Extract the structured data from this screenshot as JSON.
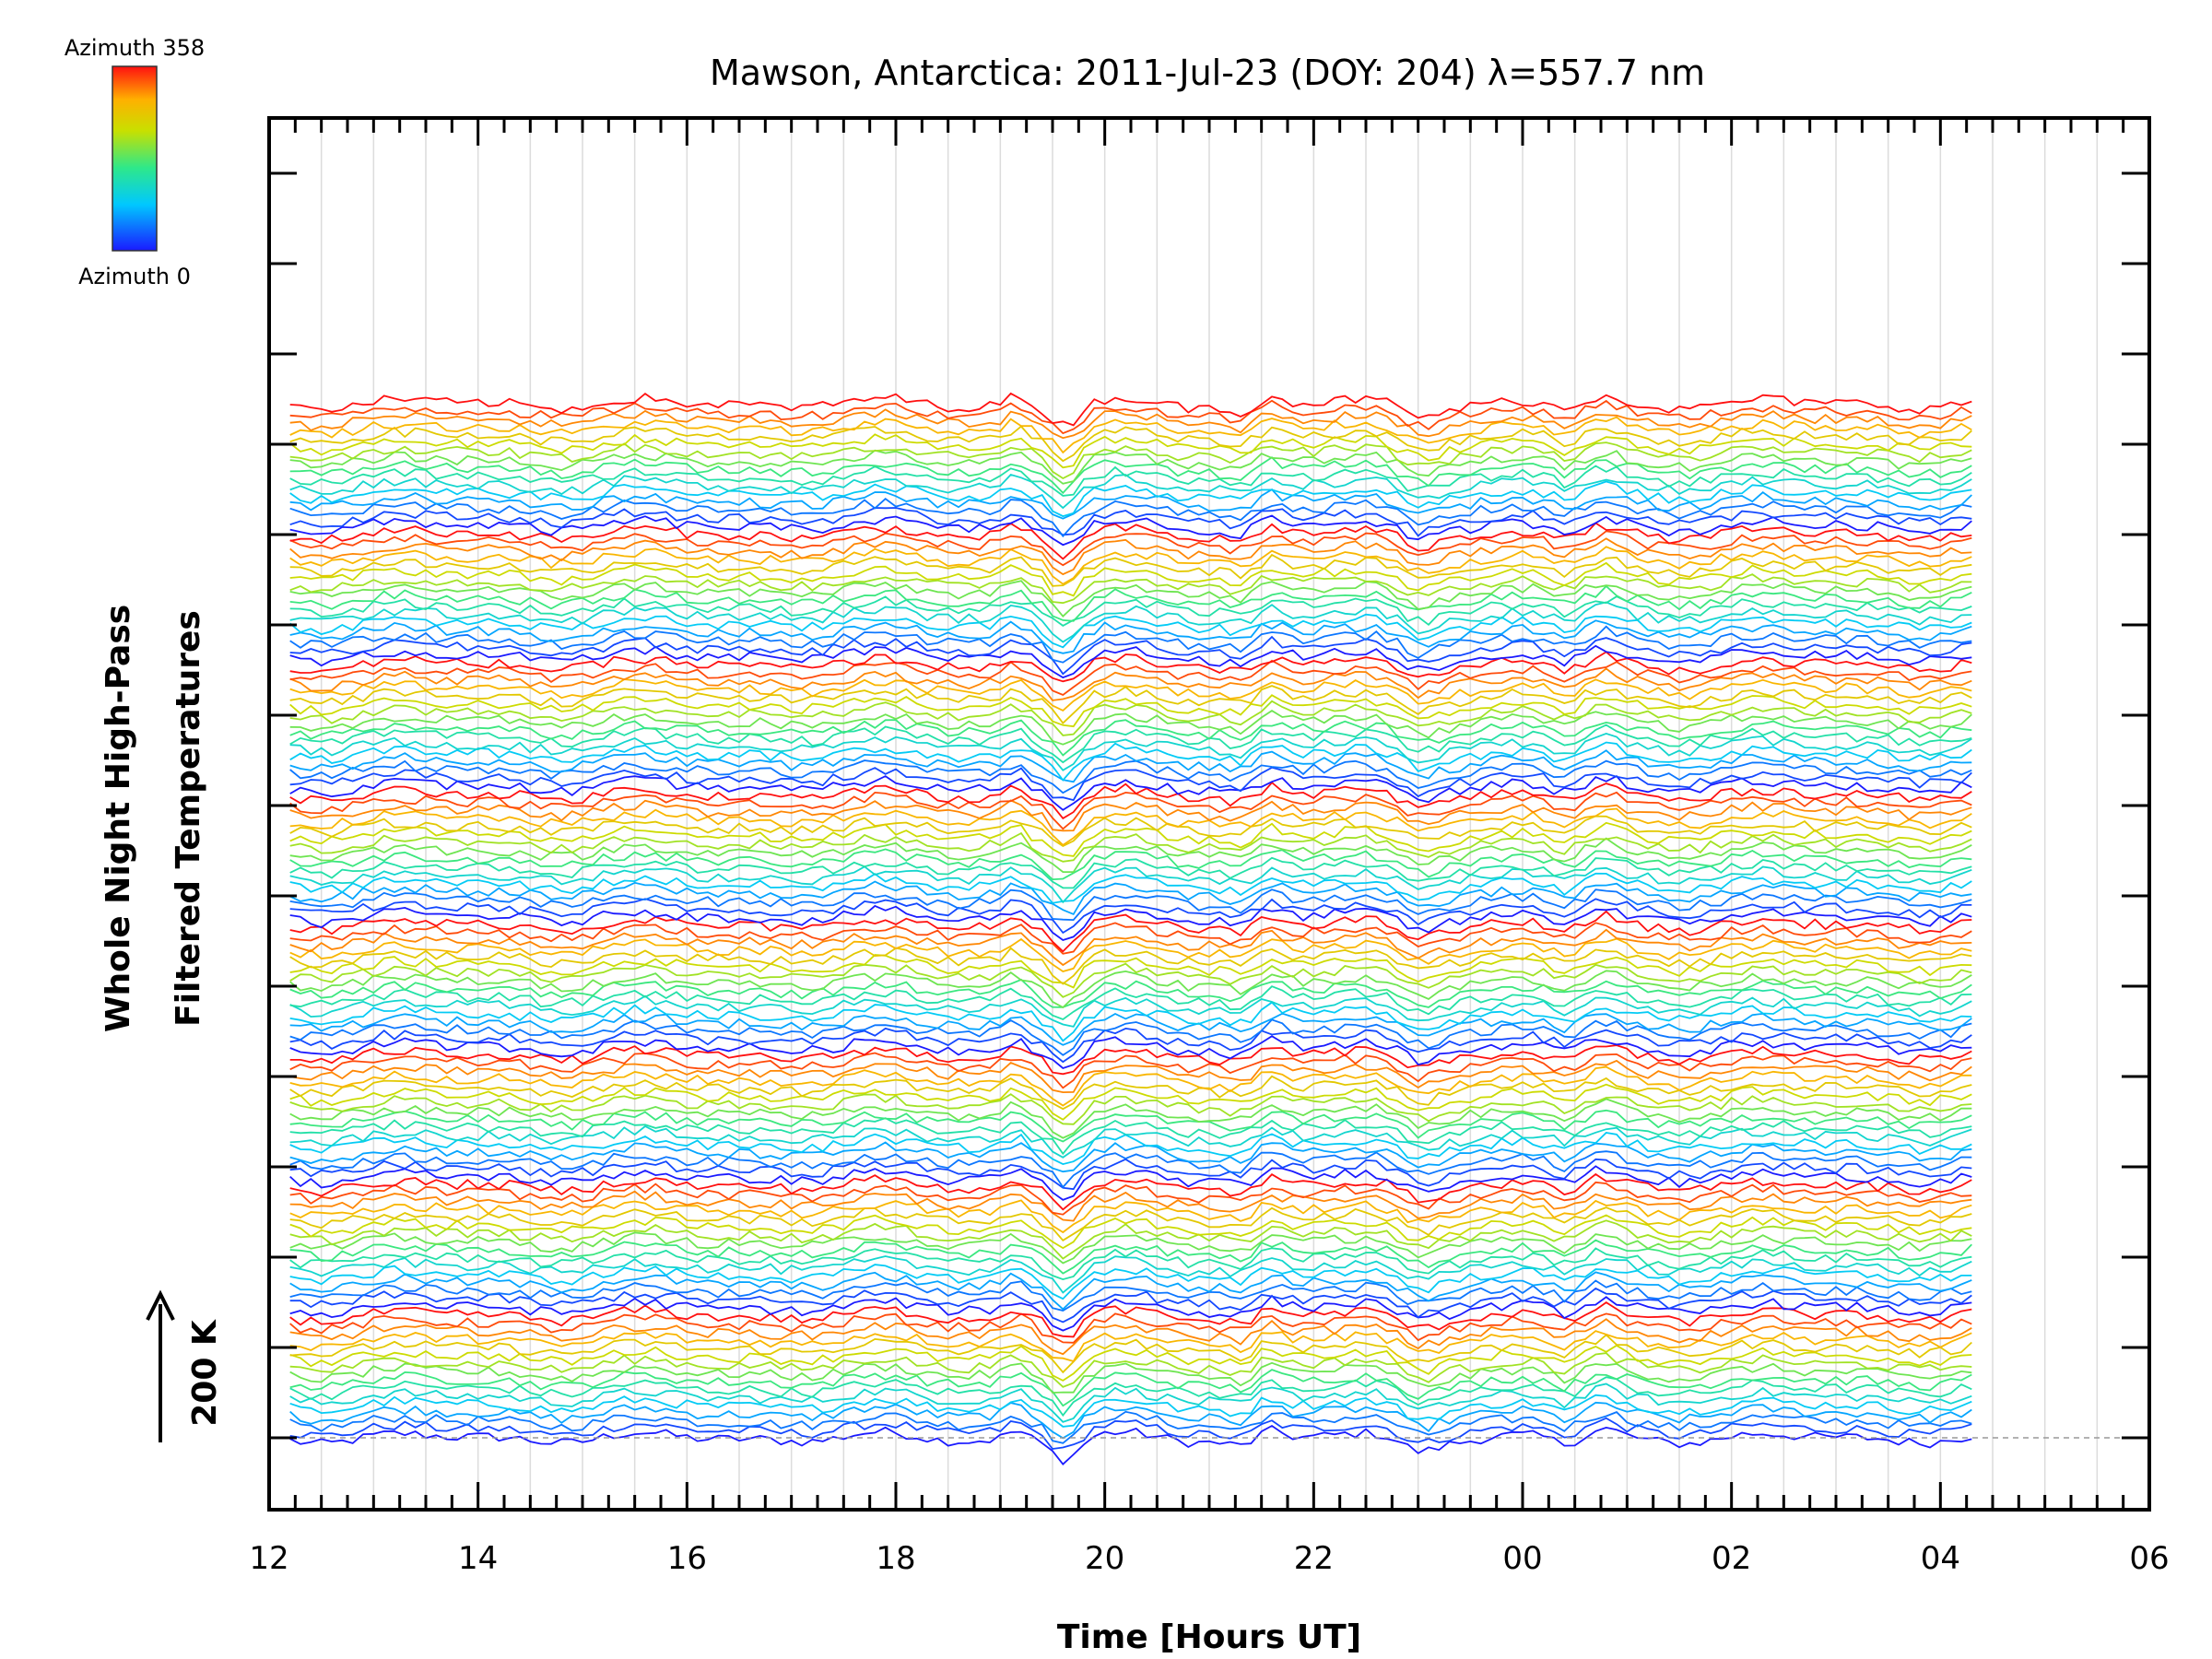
{
  "chart_data": {
    "type": "line",
    "title": "Mawson, Antarctica: 2011-Jul-23 (DOY: 204) λ=557.7 nm",
    "xlabel": "Time [Hours UT]",
    "ylabel_line1": "Whole Night High-Pass",
    "ylabel_line2": "Filtered Temperatures",
    "scale_label": "200 K",
    "x_range": [
      12,
      30
    ],
    "x_tick_labels": [
      "12",
      "14",
      "16",
      "18",
      "20",
      "22",
      "00",
      "02",
      "04",
      "06"
    ],
    "data_x_range": [
      12.2,
      28.3
    ],
    "trace_count": 128,
    "trace_spacing_K": 19,
    "legend": {
      "top_label": "Azimuth 358",
      "bottom_label": "Azimuth 0",
      "colormap": "rainbow",
      "azimuth_range": [
        0,
        358
      ]
    },
    "features": [
      {
        "time": 19.6,
        "description": "sharp dip"
      },
      {
        "time": 21.3,
        "description": "dip"
      },
      {
        "time": 23.0,
        "description": "dip"
      },
      {
        "time": 24.5,
        "description": "dip"
      }
    ],
    "grid": true
  }
}
